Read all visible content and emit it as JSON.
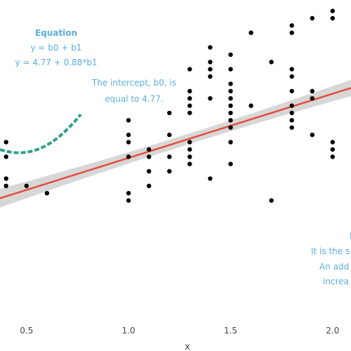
{
  "chart_data": {
    "type": "scatter",
    "xlabel": "x",
    "ylabel": "",
    "xlim": [
      0.37,
      2.09
    ],
    "ylim": [
      2.72,
      7.15
    ],
    "x_ticks": [
      "0.5",
      "1.0",
      "1.5",
      "2.0"
    ],
    "grid": false,
    "points": {
      "x": [
        0.4,
        0.4,
        0.4,
        0.4,
        0.5,
        0.6,
        1.0,
        1.0,
        1.0,
        1.0,
        1.0,
        1.0,
        1.1,
        1.1,
        1.1,
        1.1,
        1.2,
        1.2,
        1.2,
        1.2,
        1.3,
        1.3,
        1.3,
        1.3,
        1.3,
        1.3,
        1.3,
        1.3,
        1.3,
        1.4,
        1.4,
        1.4,
        1.4,
        1.4,
        1.4,
        1.5,
        1.5,
        1.5,
        1.5,
        1.5,
        1.5,
        1.5,
        1.5,
        1.5,
        1.5,
        1.5,
        1.6,
        1.6,
        1.7,
        1.7,
        1.8,
        1.8,
        1.8,
        1.8,
        1.8,
        1.8,
        1.8,
        1.8,
        1.8,
        1.9,
        1.9,
        1.9,
        1.9,
        2.0,
        2.0,
        2.0,
        2.0,
        2.0
      ],
      "y": [
        5.2,
        5.0,
        4.7,
        4.6,
        4.6,
        4.5,
        5.5,
        5.3,
        5.2,
        5.0,
        4.5,
        4.4,
        5.1,
        5.0,
        4.8,
        4.6,
        5.6,
        5.3,
        5.0,
        4.8,
        6.2,
        5.9,
        5.8,
        5.7,
        5.6,
        5.2,
        5.1,
        5.0,
        4.9,
        6.5,
        6.3,
        6.2,
        6.1,
        5.8,
        4.7,
        6.4,
        6.2,
        6.0,
        5.9,
        5.8,
        5.7,
        5.6,
        5.5,
        5.4,
        5.2,
        4.9,
        6.7,
        5.7,
        6.3,
        4.4,
        6.8,
        6.7,
        6.2,
        6.1,
        5.9,
        5.7,
        5.6,
        5.5,
        5.4,
        6.9,
        5.9,
        5.8,
        5.3,
        7.0,
        6.9,
        5.2,
        5.1,
        5.0
      ]
    },
    "regression": {
      "intercept": 4.77,
      "slope": 0.88,
      "ci_halfwidth": 0.12,
      "line_color": "#e74c3c",
      "band_color": "#d0d0d0"
    },
    "point_color": "#000000",
    "annotation_color": "#5aaee0",
    "arrow_color": "#2fa08a"
  },
  "annotations": {
    "equation_title": "Equation",
    "equation_line1": "y = b0 + b1",
    "equation_line2": "y = 4.77 + 0.88*b1",
    "intercept_line1": "The intercept, b0, is",
    "intercept_line2": "equal to 4.77.",
    "right_line1": "B",
    "right_line2": "It is the s",
    "right_line3": "An add",
    "right_line4": "increa"
  }
}
